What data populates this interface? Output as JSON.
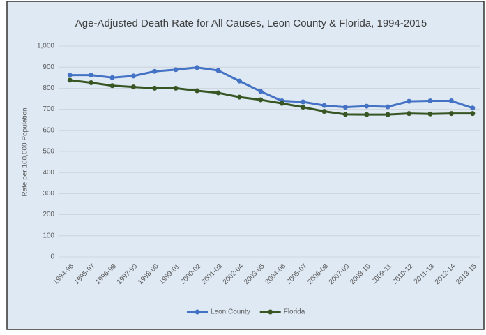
{
  "chart_data": {
    "type": "line",
    "title": "Age-Adjusted Death Rate for All Causes, Leon County & Florida, 1994-2015",
    "y_label": "Rate per 100,000 Population",
    "categories": [
      "1994-96",
      "1995-97",
      "1996-98",
      "1997-99",
      "1998-00",
      "1999-01",
      "2000-02",
      "2001-03",
      "2002-04",
      "2003-05",
      "2004-06",
      "2005-07",
      "2006-08",
      "2007-09",
      "2008-10",
      "2009-11",
      "2010-12",
      "2011-13",
      "2012-14",
      "2013-15"
    ],
    "series": [
      {
        "name": "Leon County",
        "color": "#4472c4",
        "values": [
          862,
          862,
          850,
          858,
          880,
          888,
          898,
          884,
          834,
          785,
          740,
          735,
          718,
          710,
          715,
          712,
          738,
          740,
          740,
          706
        ]
      },
      {
        "name": "Florida",
        "color": "#375623",
        "values": [
          838,
          826,
          812,
          806,
          800,
          800,
          788,
          778,
          758,
          745,
          728,
          710,
          690,
          676,
          675,
          675,
          680,
          678,
          680,
          680
        ]
      }
    ],
    "ylim": [
      0,
      1000
    ],
    "yticks": [
      0,
      100,
      200,
      300,
      400,
      500,
      600,
      700,
      800,
      900,
      {
        "value": 1000,
        "label": "1,000"
      }
    ],
    "grid": true,
    "legend": "bottom"
  }
}
